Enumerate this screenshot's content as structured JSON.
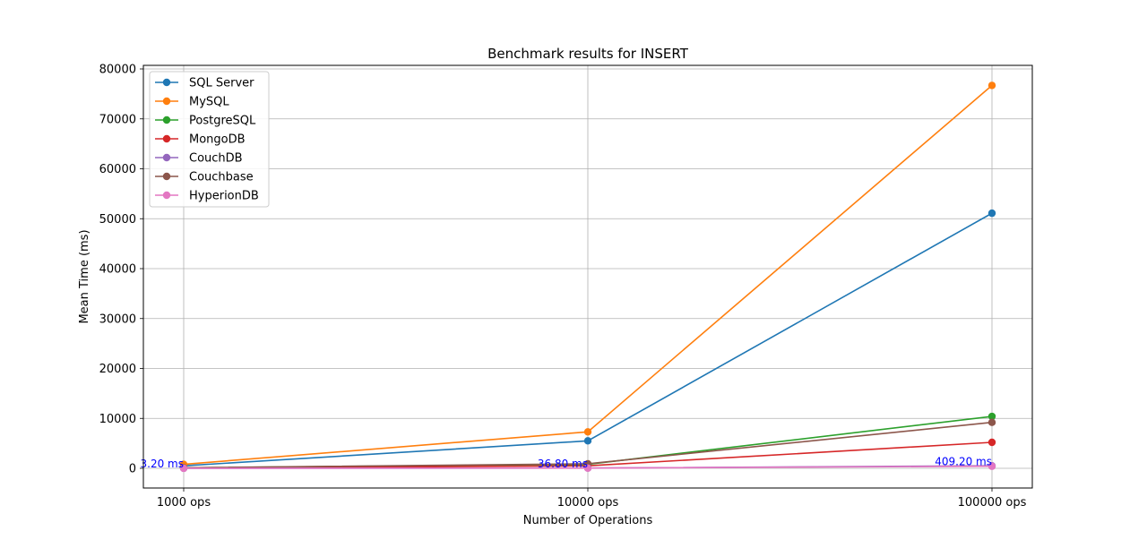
{
  "chart_data": {
    "type": "line",
    "title": "Benchmark results for INSERT",
    "xlabel": "Number of Operations",
    "ylabel": "Mean Time (ms)",
    "categories": [
      "1000 ops",
      "10000 ops",
      "100000 ops"
    ],
    "ylim": [
      -4000,
      80000
    ],
    "yticks": [
      0,
      10000,
      20000,
      30000,
      40000,
      50000,
      60000,
      70000,
      80000
    ],
    "grid": true,
    "legend_position": "top-left",
    "series": [
      {
        "name": "SQL Server",
        "color": "#1f77b4",
        "values": [
          500,
          5500,
          51100
        ]
      },
      {
        "name": "MySQL",
        "color": "#ff7f0e",
        "values": [
          800,
          7300,
          76700
        ]
      },
      {
        "name": "PostgreSQL",
        "color": "#2ca02c",
        "values": [
          100,
          800,
          10400
        ]
      },
      {
        "name": "MongoDB",
        "color": "#d62728",
        "values": [
          50,
          500,
          5200
        ]
      },
      {
        "name": "CouchDB",
        "color": "#9467bd",
        "values": [
          5,
          50,
          500
        ]
      },
      {
        "name": "Couchbase",
        "color": "#8c564b",
        "values": [
          100,
          900,
          9200
        ]
      },
      {
        "name": "HyperionDB",
        "color": "#e377c2",
        "values": [
          3.2,
          36.8,
          409.2
        ]
      }
    ],
    "annotations": [
      {
        "text": "3.20 ms",
        "series": "HyperionDB",
        "category": "1000 ops",
        "color": "#0000ff"
      },
      {
        "text": "36.80 ms",
        "series": "HyperionDB",
        "category": "10000 ops",
        "color": "#0000ff"
      },
      {
        "text": "409.20 ms",
        "series": "HyperionDB",
        "category": "100000 ops",
        "color": "#0000ff"
      }
    ]
  }
}
